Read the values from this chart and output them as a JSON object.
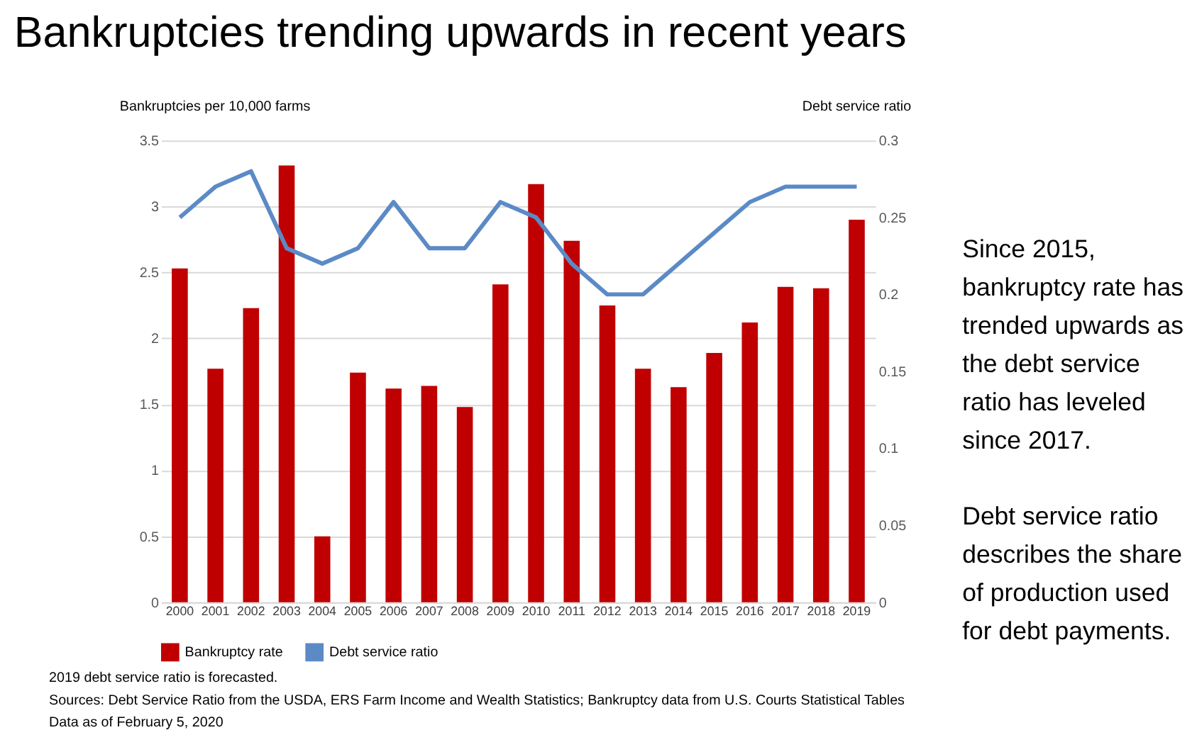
{
  "chart_data": {
    "type": "bar",
    "title": "Bankruptcies trending upwards in recent years",
    "ylabel": "Bankruptcies per 10,000 farms",
    "y2label": "Debt service ratio",
    "categories": [
      "2000",
      "2001",
      "2002",
      "2003",
      "2004",
      "2005",
      "2006",
      "2007",
      "2008",
      "2009",
      "2010",
      "2011",
      "2012",
      "2013",
      "2014",
      "2015",
      "2016",
      "2017",
      "2018",
      "2019"
    ],
    "series": [
      {
        "name": "Bankruptcy rate",
        "color": "#c00000",
        "values": [
          2.53,
          1.77,
          2.23,
          3.31,
          0.5,
          1.74,
          1.62,
          1.64,
          1.48,
          2.41,
          3.17,
          2.74,
          2.25,
          1.77,
          1.63,
          1.89,
          2.12,
          2.39,
          2.38,
          2.9
        ]
      },
      {
        "name": "Debt service ratio",
        "type": "line",
        "axis": "y2",
        "color": "#5b8ac6",
        "values": [
          0.25,
          0.27,
          0.28,
          0.23,
          0.22,
          0.23,
          0.26,
          0.23,
          0.23,
          0.26,
          0.25,
          0.22,
          0.2,
          0.2,
          0.22,
          0.24,
          0.26,
          0.27,
          0.27,
          0.27
        ]
      }
    ],
    "ylim": [
      0,
      3.5
    ],
    "yticks": [
      0,
      0.5,
      1,
      1.5,
      2,
      2.5,
      3,
      3.5
    ],
    "y2lim": [
      0,
      0.3
    ],
    "y2ticks": [
      0,
      0.05,
      0.1,
      0.15,
      0.2,
      0.25,
      0.3
    ],
    "grid": "y",
    "legend": "bottom",
    "annotations": [
      "Since 2015, bankruptcy rate has trended upwards as the debt service ratio has leveled since 2017.",
      "Debt service ratio describes the share of production used for debt payments.",
      "2019 debt service ratio is forecasted.",
      "Sources:  Debt Service Ratio from the USDA, ERS Farm Income and Wealth Statistics; Bankruptcy data from U.S. Courts Statistical Tables",
      "Data as of February 5, 2020"
    ]
  }
}
